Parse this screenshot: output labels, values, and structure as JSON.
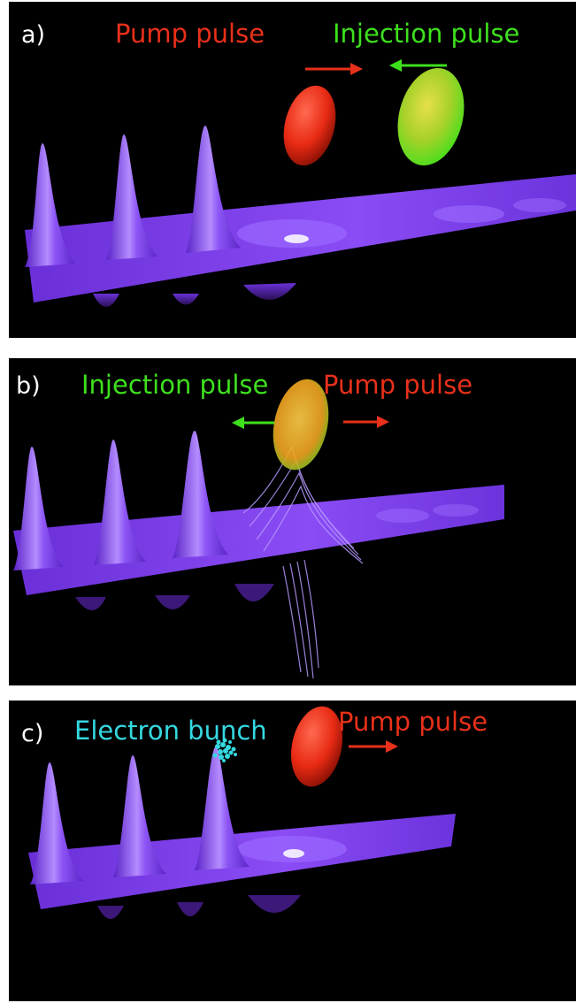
{
  "panels": [
    {
      "letter": "a)",
      "labels": {
        "pump": "Pump pulse",
        "injection": "Injection pulse"
      }
    },
    {
      "letter": "b)",
      "labels": {
        "injection": "Injection pulse",
        "pump": "Pump pulse"
      }
    },
    {
      "letter": "c)",
      "labels": {
        "electron": "Electron bunch",
        "pump": "Pump pulse"
      }
    }
  ],
  "colors": {
    "pump": "#e8301a",
    "injection": "#3ee01e",
    "electron": "#35d8e0",
    "wake": "#7b3cf0",
    "background": "#000000"
  }
}
